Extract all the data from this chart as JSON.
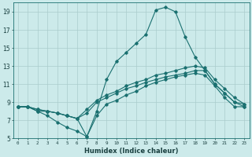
{
  "title": "",
  "xlabel": "Humidex (Indice chaleur)",
  "ylabel": "",
  "bg_color": "#cceaea",
  "line_color": "#1a7070",
  "grid_color": "#aacccc",
  "xlim": [
    -0.5,
    23.5
  ],
  "ylim": [
    5,
    20
  ],
  "xticks": [
    0,
    1,
    2,
    3,
    4,
    5,
    6,
    7,
    8,
    9,
    10,
    11,
    12,
    13,
    14,
    15,
    16,
    17,
    18,
    19,
    20,
    21,
    22,
    23
  ],
  "yticks": [
    5,
    7,
    9,
    11,
    13,
    15,
    17,
    19
  ],
  "series": [
    {
      "x": [
        0,
        1,
        2,
        3,
        4,
        5,
        6,
        7,
        8,
        9,
        10,
        11,
        12,
        13,
        14,
        15,
        16,
        17,
        18,
        19,
        20,
        21,
        22,
        23
      ],
      "y": [
        8.5,
        8.5,
        8.0,
        8.0,
        7.8,
        7.5,
        7.2,
        7.8,
        9.0,
        9.5,
        10.0,
        10.5,
        10.8,
        11.2,
        11.5,
        11.8,
        12.0,
        12.2,
        12.5,
        12.5,
        11.0,
        10.0,
        9.0,
        8.5
      ]
    },
    {
      "x": [
        0,
        1,
        2,
        3,
        4,
        5,
        6,
        7,
        8,
        9,
        10,
        11,
        12,
        13,
        14,
        15,
        16,
        17,
        18,
        19,
        20,
        21,
        22,
        23
      ],
      "y": [
        8.5,
        8.5,
        8.2,
        8.0,
        7.8,
        7.5,
        7.2,
        8.2,
        9.2,
        9.8,
        10.2,
        10.8,
        11.2,
        11.5,
        12.0,
        12.2,
        12.5,
        12.8,
        13.0,
        12.8,
        11.5,
        10.5,
        9.5,
        8.8
      ]
    },
    {
      "x": [
        0,
        1,
        2,
        3,
        4,
        5,
        6,
        7,
        8,
        9,
        10,
        11,
        12,
        13,
        14,
        15,
        16,
        17,
        18,
        19,
        20,
        21,
        22,
        23
      ],
      "y": [
        8.5,
        8.5,
        8.0,
        7.5,
        6.8,
        6.2,
        5.8,
        5.2,
        7.5,
        8.8,
        9.2,
        9.8,
        10.2,
        10.8,
        11.2,
        11.5,
        11.8,
        12.0,
        12.2,
        12.0,
        10.8,
        9.5,
        8.5,
        8.5
      ]
    },
    {
      "x": [
        0,
        1,
        2,
        3,
        4,
        5,
        6,
        7,
        8,
        9,
        10,
        11,
        12,
        13,
        14,
        15,
        16,
        17,
        18,
        19,
        20,
        21,
        22,
        23
      ],
      "y": [
        8.5,
        8.5,
        8.2,
        8.0,
        7.8,
        7.5,
        7.2,
        5.2,
        8.0,
        11.5,
        13.5,
        14.5,
        15.5,
        16.5,
        19.2,
        19.5,
        19.0,
        16.2,
        14.0,
        12.5,
        11.0,
        10.0,
        9.0,
        8.8
      ]
    }
  ]
}
